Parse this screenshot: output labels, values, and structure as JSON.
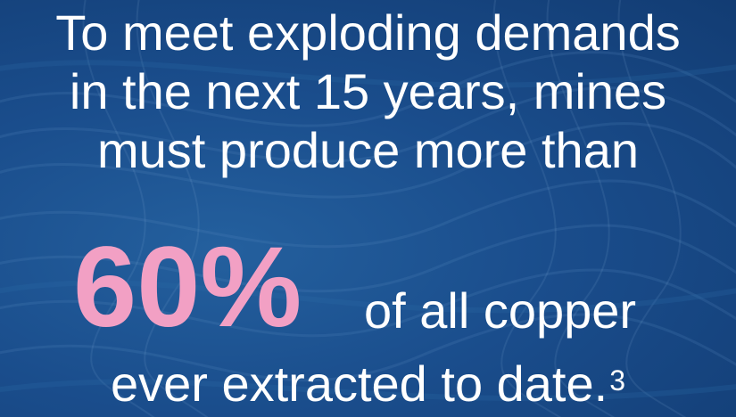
{
  "headline": {
    "line1": "To meet exploding demands",
    "line2": "in the next 15 years, mines",
    "line3": "must produce more than"
  },
  "stat": {
    "value": "60%",
    "tail": "of all copper"
  },
  "closing": {
    "text": "ever extracted to date.",
    "footnote_ref": "3"
  },
  "colors": {
    "background": "#1a4d8c",
    "text": "#ffffff",
    "accent": "#f2a0c4"
  }
}
